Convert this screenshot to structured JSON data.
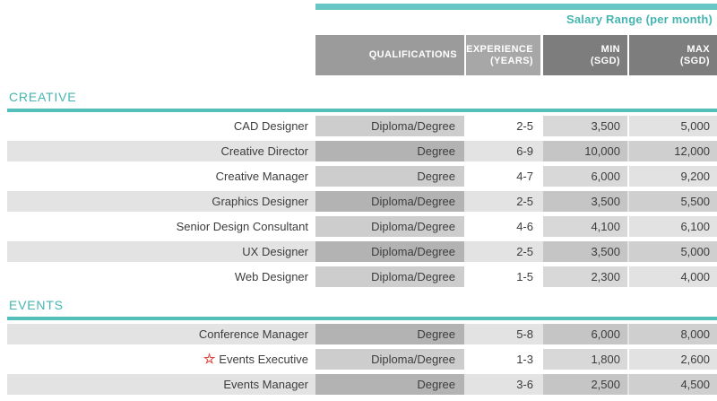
{
  "topbar": {
    "salary_range_label": "Salary Range (per month)"
  },
  "table_header": {
    "qualifications": {
      "line1": "QUALIFICATIONS",
      "line2": ""
    },
    "experience": {
      "line1": "EXPERIENCE",
      "line2": "(YEARS)"
    },
    "min": {
      "line1": "MIN",
      "line2": "(SGD)"
    },
    "max": {
      "line1": "MAX",
      "line2": "(SGD)"
    }
  },
  "sections": [
    {
      "name": "CREATIVE",
      "rows": [
        {
          "title": "CAD Designer",
          "qualifications": "Diploma/Degree",
          "experience": "2-5",
          "min": "3,500",
          "max": "5,000",
          "starred": false
        },
        {
          "title": "Creative Director",
          "qualifications": "Degree",
          "experience": "6-9",
          "min": "10,000",
          "max": "12,000",
          "starred": false
        },
        {
          "title": "Creative Manager",
          "qualifications": "Degree",
          "experience": "4-7",
          "min": "6,000",
          "max": "9,200",
          "starred": false
        },
        {
          "title": "Graphics Designer",
          "qualifications": "Diploma/Degree",
          "experience": "2-5",
          "min": "3,500",
          "max": "5,500",
          "starred": false
        },
        {
          "title": "Senior Design Consultant",
          "qualifications": "Diploma/Degree",
          "experience": "4-6",
          "min": "4,100",
          "max": "6,100",
          "starred": false
        },
        {
          "title": "UX Designer",
          "qualifications": "Diploma/Degree",
          "experience": "2-5",
          "min": "3,500",
          "max": "5,000",
          "starred": false
        },
        {
          "title": "Web Designer",
          "qualifications": "Diploma/Degree",
          "experience": "1-5",
          "min": "2,300",
          "max": "4,000",
          "starred": false
        }
      ]
    },
    {
      "name": "EVENTS",
      "rows": [
        {
          "title": "Conference Manager",
          "qualifications": "Degree",
          "experience": "5-8",
          "min": "6,000",
          "max": "8,000",
          "starred": false
        },
        {
          "title": "Events Executive",
          "qualifications": "Diploma/Degree",
          "experience": "1-3",
          "min": "1,800",
          "max": "2,600",
          "starred": true
        },
        {
          "title": "Events Manager",
          "qualifications": "Degree",
          "experience": "3-6",
          "min": "2,500",
          "max": "4,500",
          "starred": false
        }
      ]
    }
  ],
  "icons": {
    "featured_star": "☆"
  },
  "colors": {
    "teal_bar": "#68c7c4",
    "teal_text": "#45b5b1",
    "teal_rule": "#54c0bc",
    "header_gray": "#9b9b9b",
    "header_gray_light": "#a7a7a7",
    "header_gray_dark": "#7d7d7d",
    "row_shaded": "#e3e3e3",
    "star_red": "#e2453c",
    "text_dark": "#3d3d3d"
  }
}
